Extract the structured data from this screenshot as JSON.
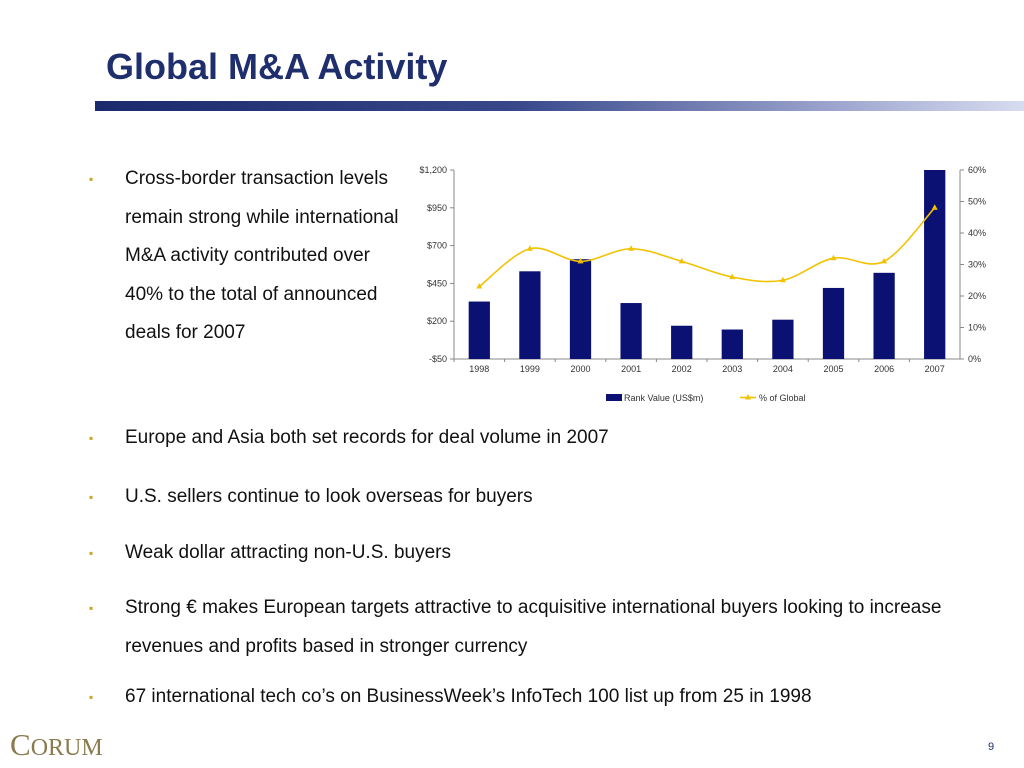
{
  "slide": {
    "title": "Global M&A Activity",
    "bullets": [
      "Cross-border transaction levels remain strong while international M&A activity contributed over 40% to the total of announced deals for 2007",
      "Europe and Asia both set records for deal volume in 2007",
      "U.S. sellers continue to look overseas for buyers",
      "Weak dollar attracting non-U.S. buyers",
      "Strong € makes European targets attractive to acquisitive international buyers looking to increase revenues and profits based in stronger currency",
      "67 international tech co’s on BusinessWeek’s InfoTech 100 list up from 25 in 1998"
    ],
    "bullet_marker": "▪",
    "footer": {
      "logo_initial": "C",
      "logo_rest": "ORUM",
      "page_number": "9"
    }
  },
  "colors": {
    "title": "#1f2f6e",
    "bar": "#0a1172",
    "line": "#f2c200",
    "bullet_marker": "#c9a227"
  },
  "chart_data": {
    "type": "bar",
    "categories": [
      "1998",
      "1999",
      "2000",
      "2001",
      "2002",
      "2003",
      "2004",
      "2005",
      "2006",
      "2007"
    ],
    "series": [
      {
        "name": "Rank Value (US$m)",
        "type": "bar",
        "axis": "left",
        "values": [
          330,
          530,
          610,
          320,
          170,
          145,
          210,
          420,
          520,
          1200
        ]
      },
      {
        "name": "% of Global",
        "type": "line",
        "axis": "right",
        "values": [
          23,
          35,
          31,
          35,
          31,
          26,
          25,
          32,
          31,
          48
        ]
      }
    ],
    "y_left": {
      "min": -50,
      "max": 1200,
      "tick_values": [
        -50,
        200,
        450,
        700,
        950,
        1200
      ],
      "tick_labels": [
        "-$50",
        "$200",
        "$450",
        "$700",
        "$950",
        "$1,200"
      ]
    },
    "y_right": {
      "min": 0,
      "max": 60,
      "tick_values": [
        0,
        10,
        20,
        30,
        40,
        50,
        60
      ],
      "tick_labels": [
        "0%",
        "10%",
        "20%",
        "30%",
        "40%",
        "50%",
        "60%"
      ]
    },
    "grid": false,
    "legend": "bottom"
  }
}
